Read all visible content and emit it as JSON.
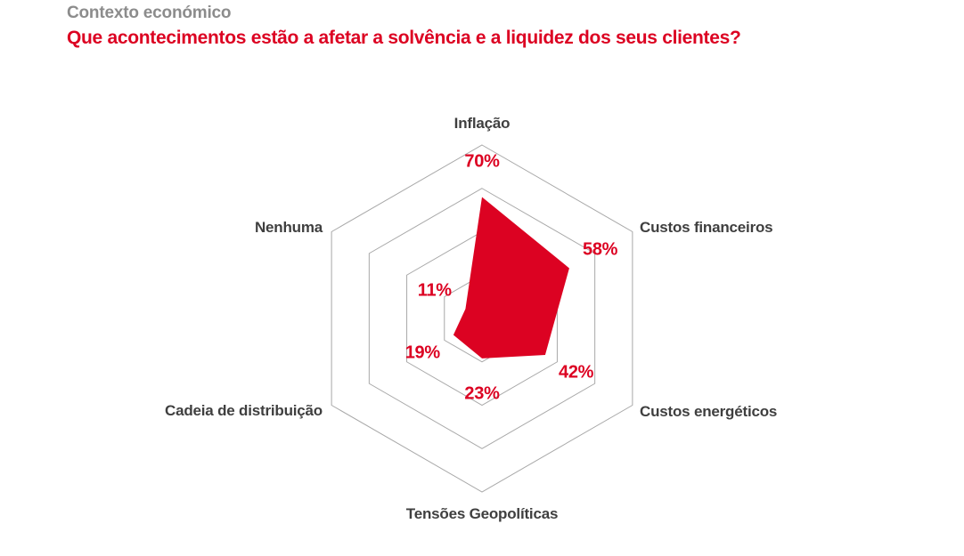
{
  "header": {
    "kicker": "Contexto económico",
    "title": "Que acontecimentos estão a afetar a solvência e a liquidez dos seus clientes?"
  },
  "colors": {
    "accent_red": "#DC0222",
    "kicker_gray": "#8C8C8C",
    "label_dark": "#3F3F3F",
    "grid_gray": "#A8A8A8",
    "background": "#FFFFFF"
  },
  "chart_data": {
    "type": "radar",
    "title": "Que acontecimentos estão a afetar a solvência e a liquidez dos seus clientes?",
    "categories": [
      "Inflação",
      "Custos financeiros",
      "Custos energéticos",
      "Tensões Geopolíticas",
      "Cadeia de distribuição",
      "Nenhuma"
    ],
    "values": [
      70,
      58,
      42,
      23,
      19,
      11
    ],
    "value_labels": [
      "70%",
      "58%",
      "42%",
      "23%",
      "19%",
      "11%"
    ],
    "unit": "%",
    "max": 100,
    "grid_rings": [
      25,
      50,
      75,
      100
    ],
    "axes_count": 6,
    "grid": true,
    "legend": false,
    "fill_color": "#DC0222"
  }
}
